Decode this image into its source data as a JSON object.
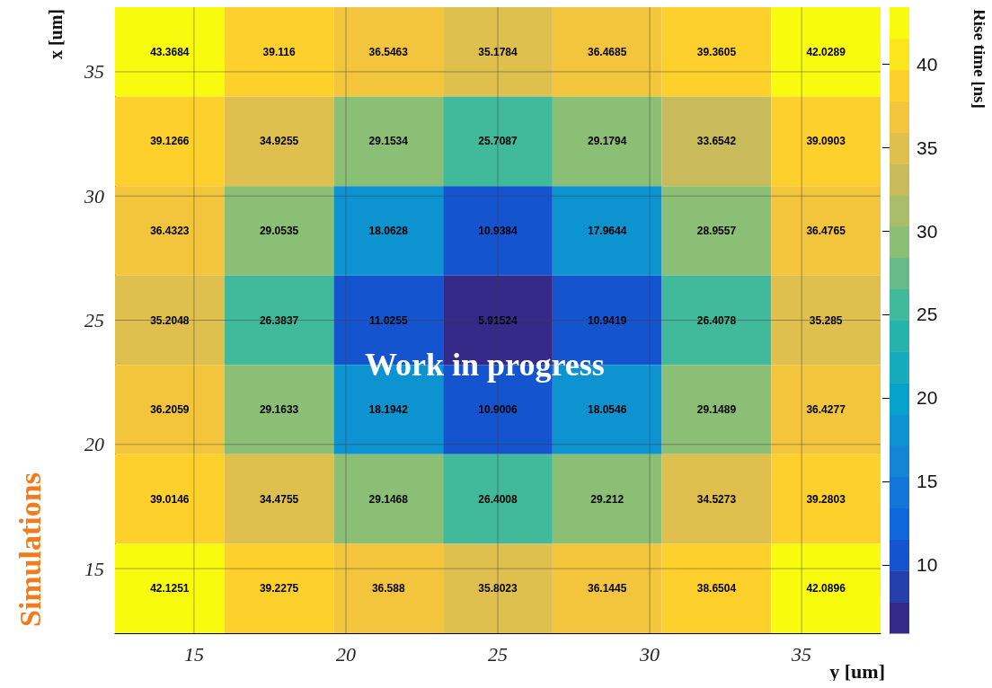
{
  "chart_data": {
    "type": "heatmap",
    "xlabel": "y [um]",
    "ylabel": "x [um]",
    "clabel": "Rise time [ns]",
    "xlim": [
      12.4,
      37.6
    ],
    "xticks": [
      15,
      20,
      25,
      30,
      35
    ],
    "ylim": [
      12.4,
      37.6
    ],
    "yticks": [
      15,
      20,
      25,
      30,
      35
    ],
    "clim": [
      5.9,
      43.4
    ],
    "cticks": [
      10,
      15,
      20,
      25,
      30,
      35,
      40
    ],
    "cells": [
      [
        43.3684,
        39.116,
        36.5463,
        35.1784,
        36.4685,
        39.3605,
        42.0289
      ],
      [
        39.1266,
        34.9255,
        29.1534,
        25.7087,
        29.1794,
        33.6542,
        39.0903
      ],
      [
        36.4323,
        29.0535,
        18.0628,
        10.9384,
        17.9644,
        28.9557,
        36.4765
      ],
      [
        35.2048,
        26.3837,
        11.0255,
        5.91524,
        10.9419,
        26.4078,
        35.285
      ],
      [
        36.2059,
        29.1633,
        18.1942,
        10.9006,
        18.0546,
        29.1489,
        36.4277
      ],
      [
        39.0146,
        34.4755,
        29.1468,
        26.4008,
        29.212,
        34.5273,
        39.2803
      ],
      [
        42.1251,
        39.2275,
        36.588,
        35.8023,
        36.1445,
        38.6504,
        42.0896
      ]
    ],
    "data_labels": true,
    "grid": true,
    "annotations": [
      "Work in progress",
      "Simulations"
    ]
  }
}
